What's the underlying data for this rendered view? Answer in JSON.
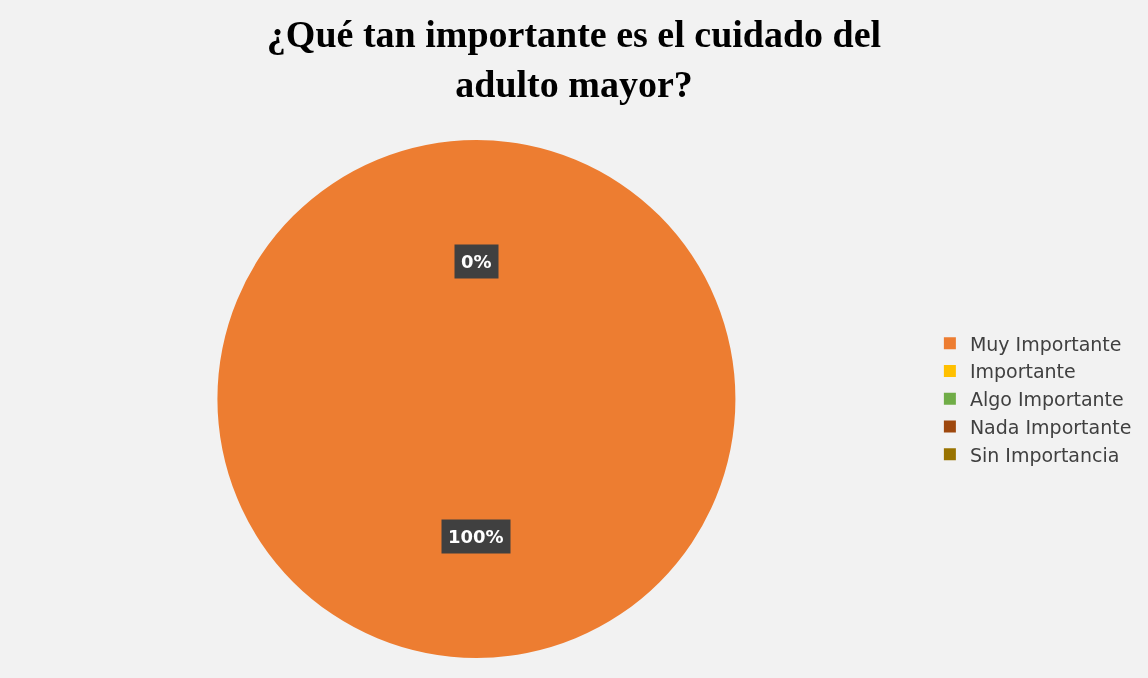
{
  "chart_data": {
    "type": "pie",
    "title": "¿Qué tan importante es el cuidado del adulto mayor?",
    "categories": [
      "Muy Importante",
      "Importante",
      "Algo Importante",
      "Nada Importante",
      "Sin Importancia"
    ],
    "values": [
      100,
      0,
      0,
      0,
      0
    ],
    "colors": [
      "#ed7d31",
      "#ffc000",
      "#70ad47",
      "#9e480e",
      "#997300"
    ],
    "value_labels": [
      "100%",
      "0%",
      null,
      null,
      null
    ],
    "legend": "right"
  }
}
